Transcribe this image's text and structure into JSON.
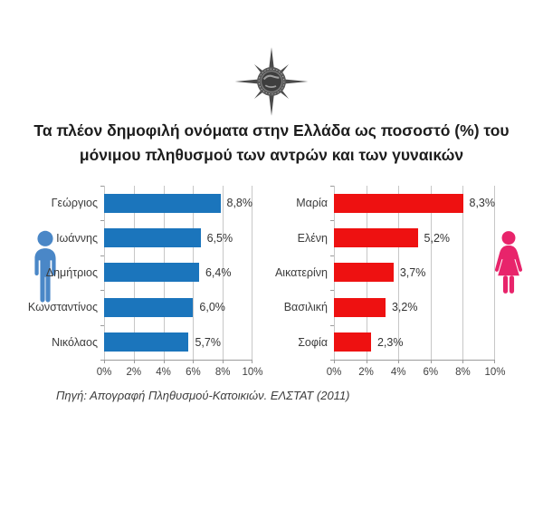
{
  "title": {
    "line1": "Τα πλέον δημοφιλή ονόματα στην Ελλάδα ως ποσοστό (%) του",
    "line2": "μόνιμου πληθυσμού των αντρών και των γυναικών"
  },
  "source": "Πηγή: Απογραφή Πληθυσμού-Κατοικιών. ΕΛΣΤΑΤ (2011)",
  "icons": {
    "logo": "compass-star-statistics-logo",
    "left": "male-figure",
    "right": "female-figure"
  },
  "colors": {
    "male_bar": "#1B75BC",
    "female_bar": "#EE1111",
    "male_icon": "#4A87C7",
    "female_icon": "#E8246B",
    "grid": "#C7C7C7",
    "axis": "#9B9B9B",
    "title_text": "#1D1D1D"
  },
  "chart_data": [
    {
      "type": "bar",
      "orientation": "horizontal",
      "group": "men",
      "categories": [
        "Γεώργιος",
        "Ιωάννης",
        "Δημήτριος",
        "Κωνσταντίνος",
        "Νικόλαος"
      ],
      "values": [
        8.8,
        6.5,
        6.4,
        6.0,
        5.7
      ],
      "value_labels": [
        "8,8%",
        "6,5%",
        "6,4%",
        "6,0%",
        "5,7%"
      ],
      "xlim": [
        0,
        10
      ],
      "ticks": [
        "0%",
        "2%",
        "4%",
        "6%",
        "8%",
        "10%"
      ],
      "bar_color": "#1B75BC",
      "grid": true,
      "legend": "none"
    },
    {
      "type": "bar",
      "orientation": "horizontal",
      "group": "women",
      "categories": [
        "Μαρία",
        "Ελένη",
        "Αικατερίνη",
        "Βασιλική",
        "Σοφία"
      ],
      "values": [
        8.3,
        5.2,
        3.7,
        3.2,
        2.3
      ],
      "value_labels": [
        "8,3%",
        "5,2%",
        "3,7%",
        "3,2%",
        "2,3%"
      ],
      "xlim": [
        0,
        10
      ],
      "ticks": [
        "0%",
        "2%",
        "4%",
        "6%",
        "8%",
        "10%"
      ],
      "bar_color": "#EE1111",
      "grid": true,
      "legend": "none"
    }
  ]
}
